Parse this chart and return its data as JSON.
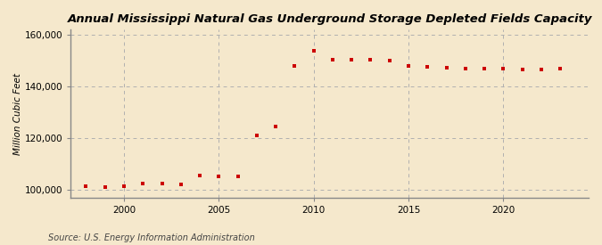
{
  "title": "Annual Mississippi Natural Gas Underground Storage Depleted Fields Capacity",
  "ylabel": "Million Cubic Feet",
  "source": "Source: U.S. Energy Information Administration",
  "background_color": "#f5e8cc",
  "marker_color": "#cc0000",
  "grid_color": "#b0b0b0",
  "spine_color": "#888888",
  "years": [
    1998,
    1999,
    2000,
    2001,
    2002,
    2003,
    2004,
    2005,
    2006,
    2007,
    2008,
    2009,
    2010,
    2011,
    2012,
    2013,
    2014,
    2015,
    2016,
    2017,
    2018,
    2019,
    2020,
    2021,
    2022,
    2023
  ],
  "values": [
    101500,
    101200,
    101500,
    102500,
    102500,
    102000,
    105500,
    105200,
    105200,
    121000,
    124500,
    148000,
    154000,
    150500,
    150500,
    150500,
    150200,
    148000,
    147500,
    147200,
    147000,
    147000,
    146800,
    146500,
    146500,
    147000
  ],
  "ylim": [
    97000,
    162000
  ],
  "yticks": [
    100000,
    120000,
    140000,
    160000
  ],
  "ytick_labels": [
    "100,000",
    "120,000",
    "140,000",
    "160,000"
  ],
  "xtick_major": [
    2000,
    2005,
    2010,
    2015,
    2020
  ],
  "xlim": [
    1997.2,
    2024.5
  ],
  "title_fontsize": 9.5,
  "label_fontsize": 7.5,
  "source_fontsize": 7
}
